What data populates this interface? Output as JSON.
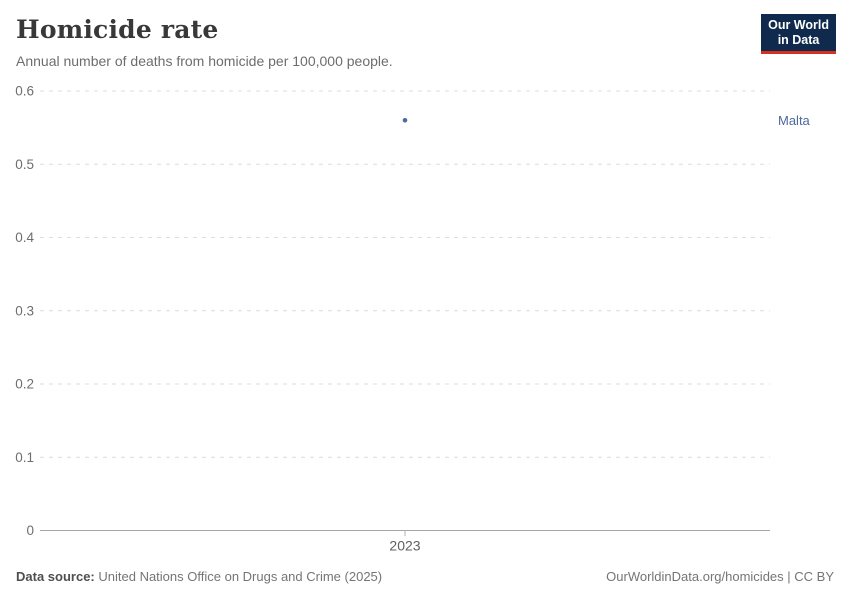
{
  "header": {
    "title": "Homicide rate",
    "subtitle": "Annual number of deaths from homicide per 100,000 people.",
    "logo": {
      "line1": "Our World",
      "line2": "in Data"
    }
  },
  "chart_data": {
    "type": "scatter",
    "title": "Homicide rate",
    "subtitle": "Annual number of deaths from homicide per 100,000 people.",
    "x": [
      2023
    ],
    "xtick_labels": [
      "2023"
    ],
    "series": [
      {
        "name": "Malta",
        "color": "#4C6A9C",
        "values": [
          0.56
        ]
      }
    ],
    "xlabel": "",
    "ylabel": "",
    "ylim": [
      0,
      0.6
    ],
    "yticks": [
      0,
      0.1,
      0.2,
      0.3,
      0.4,
      0.5,
      0.6
    ],
    "ytick_labels": [
      "0",
      "0.1",
      "0.2",
      "0.3",
      "0.4",
      "0.5",
      "0.6"
    ],
    "grid": "horizontal-dashed",
    "legend_position": "right-of-plot-inline-label"
  },
  "colors": {
    "accent_blue": "#4C6A9C",
    "logo_navy": "#0f2a4d",
    "logo_red": "#d8301f",
    "gridline": "#dcdcdc",
    "axis_line": "#a6a6a6",
    "tick_text": "#6e6e6e"
  },
  "footer": {
    "source_label": "Data source:",
    "source_text": "United Nations Office on Drugs and Crime (2025)",
    "credit": "OurWorldinData.org/homicides | CC BY"
  }
}
